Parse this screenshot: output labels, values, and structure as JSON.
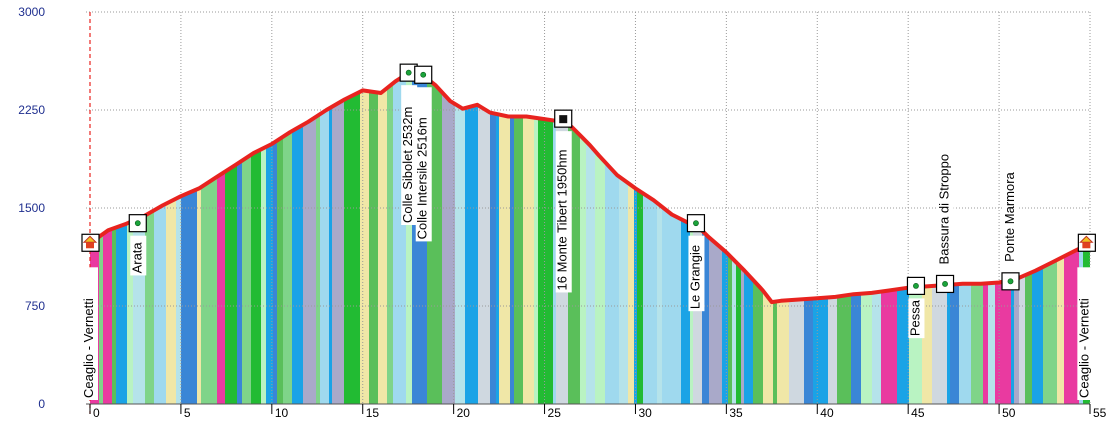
{
  "colors": {
    "profile_line": "#e8231f",
    "grid": "#9a9a9a",
    "y_tick_text": "#1f2f8f",
    "x_tick_text": "#000000",
    "start_marker_line": "#e8231f",
    "palette": [
      "#b5e3ea",
      "#9fd9ee",
      "#7fd489",
      "#22bb33",
      "#1aa3e6",
      "#f0e7a7",
      "#e93aa0",
      "#a9a9c9",
      "#cfd8e0",
      "#b9f3c2",
      "#5abf5a",
      "#3a86d6"
    ]
  },
  "chart_data": {
    "type": "area",
    "title": "",
    "xlabel": "",
    "ylabel": "",
    "xlim": [
      0,
      55
    ],
    "ylim": [
      0,
      3000
    ],
    "x_ticks": [
      0,
      5,
      10,
      15,
      20,
      25,
      30,
      35,
      40,
      45,
      50,
      55
    ],
    "y_ticks": [
      0,
      750,
      1500,
      2250,
      3000
    ],
    "grid": true,
    "profile": {
      "x": [
        0,
        1,
        2,
        3,
        4,
        5,
        6,
        7,
        8,
        9,
        10,
        11,
        12,
        13,
        14,
        15,
        16,
        16.8,
        17.5,
        18.3,
        19,
        19.8,
        20.5,
        21.3,
        22,
        23,
        24,
        25,
        26,
        26.5,
        27,
        27.5,
        28,
        29,
        30,
        31,
        32,
        33,
        33.5,
        34,
        35,
        36,
        37,
        37.5,
        38,
        39,
        40,
        41,
        42,
        43,
        44,
        45,
        46,
        47,
        48,
        49,
        50,
        51,
        52,
        53,
        54,
        55
      ],
      "y": [
        1230,
        1330,
        1380,
        1440,
        1520,
        1590,
        1650,
        1740,
        1830,
        1920,
        1990,
        2080,
        2160,
        2250,
        2330,
        2400,
        2380,
        2470,
        2532,
        2516,
        2440,
        2320,
        2260,
        2290,
        2230,
        2200,
        2200,
        2180,
        2160,
        2120,
        2050,
        1980,
        1900,
        1750,
        1650,
        1560,
        1450,
        1380,
        1350,
        1280,
        1160,
        1020,
        870,
        780,
        790,
        800,
        810,
        820,
        840,
        850,
        870,
        890,
        900,
        910,
        920,
        920,
        930,
        960,
        1020,
        1090,
        1160,
        1230
      ]
    },
    "waypoints": [
      {
        "label": "Ceaglio - Vernetti",
        "x": 0,
        "y": 1230,
        "kind": "home"
      },
      {
        "label": "Arata",
        "x": 2.6,
        "y": 1380,
        "kind": "point"
      },
      {
        "label": "Colle Sibolet 2532m",
        "x": 17.5,
        "y": 2532,
        "kind": "point"
      },
      {
        "label": "Colle Intersile 2516m",
        "x": 18.3,
        "y": 2516,
        "kind": "point"
      },
      {
        "label": "16 Monte Tibert 1950hm",
        "x": 26,
        "y": 2180,
        "kind": "summit"
      },
      {
        "label": "Le Grangie",
        "x": 33.3,
        "y": 1380,
        "kind": "point"
      },
      {
        "label": "Pessa",
        "x": 45.4,
        "y": 900,
        "kind": "point"
      },
      {
        "label": "Bassura di Stroppo",
        "x": 47,
        "y": 915,
        "kind": "point"
      },
      {
        "label": "Ponte Marmora",
        "x": 50.6,
        "y": 935,
        "kind": "point"
      },
      {
        "label": "Ceaglio - Vernetti",
        "x": 54.8,
        "y": 1230,
        "kind": "home"
      }
    ]
  }
}
